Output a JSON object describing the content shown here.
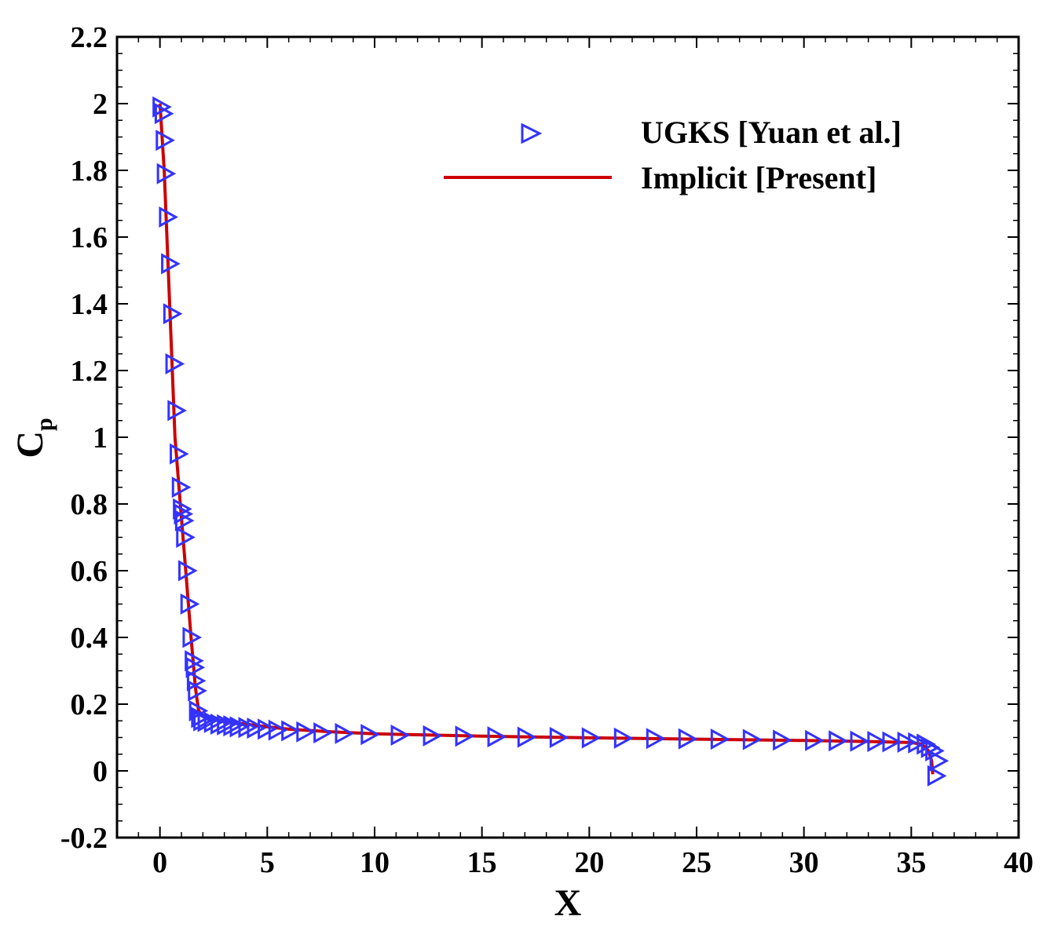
{
  "chart_data": {
    "type": "line",
    "title": "",
    "xlabel": "X",
    "ylabel_main": "C",
    "ylabel_sub": "p",
    "xlim": [
      -2,
      40
    ],
    "ylim": [
      -0.2,
      2.2
    ],
    "xticks": [
      0,
      5,
      10,
      15,
      20,
      25,
      30,
      35,
      40
    ],
    "xtick_labels": [
      "0",
      "5",
      "10",
      "15",
      "20",
      "25",
      "30",
      "35",
      "40"
    ],
    "yticks": [
      -0.2,
      0,
      0.2,
      0.4,
      0.6,
      0.8,
      1,
      1.2,
      1.4,
      1.6,
      1.8,
      2,
      2.2
    ],
    "ytick_labels": [
      "-0.2",
      "0",
      "0.2",
      "0.4",
      "0.6",
      "0.8",
      "1",
      "1.2",
      "1.4",
      "1.6",
      "1.8",
      "2",
      "2.2"
    ],
    "grid": false,
    "legend_position": "top-right",
    "series": [
      {
        "name": "UGKS [Yuan et al.]",
        "style": "markers",
        "marker": "triangle-right",
        "color": "#3333ff",
        "points": [
          [
            0.0,
            1.99
          ],
          [
            0.1,
            1.97
          ],
          [
            0.15,
            1.89
          ],
          [
            0.2,
            1.79
          ],
          [
            0.3,
            1.66
          ],
          [
            0.4,
            1.52
          ],
          [
            0.5,
            1.37
          ],
          [
            0.6,
            1.22
          ],
          [
            0.7,
            1.08
          ],
          [
            0.8,
            0.95
          ],
          [
            0.9,
            0.85
          ],
          [
            0.95,
            0.785
          ],
          [
            1.0,
            0.77
          ],
          [
            1.05,
            0.75
          ],
          [
            1.1,
            0.7
          ],
          [
            1.2,
            0.6
          ],
          [
            1.3,
            0.5
          ],
          [
            1.4,
            0.4
          ],
          [
            1.5,
            0.33
          ],
          [
            1.55,
            0.31
          ],
          [
            1.6,
            0.27
          ],
          [
            1.65,
            0.24
          ],
          [
            1.7,
            0.18
          ],
          [
            1.8,
            0.16
          ],
          [
            1.9,
            0.15
          ],
          [
            2.1,
            0.148
          ],
          [
            2.4,
            0.145
          ],
          [
            2.7,
            0.14
          ],
          [
            3.0,
            0.138
          ],
          [
            3.3,
            0.135
          ],
          [
            3.6,
            0.132
          ],
          [
            4.0,
            0.13
          ],
          [
            4.4,
            0.128
          ],
          [
            4.9,
            0.125
          ],
          [
            5.4,
            0.122
          ],
          [
            6.0,
            0.12
          ],
          [
            6.7,
            0.117
          ],
          [
            7.5,
            0.114
          ],
          [
            8.5,
            0.112
          ],
          [
            9.7,
            0.109
          ],
          [
            11.1,
            0.107
          ],
          [
            12.6,
            0.105
          ],
          [
            14.1,
            0.104
          ],
          [
            15.6,
            0.102
          ],
          [
            17.0,
            0.101
          ],
          [
            18.5,
            0.1
          ],
          [
            20.0,
            0.099
          ],
          [
            21.5,
            0.098
          ],
          [
            23.0,
            0.097
          ],
          [
            24.5,
            0.096
          ],
          [
            26.0,
            0.095
          ],
          [
            27.5,
            0.094
          ],
          [
            28.9,
            0.092
          ],
          [
            30.4,
            0.091
          ],
          [
            31.5,
            0.09
          ],
          [
            32.5,
            0.089
          ],
          [
            33.3,
            0.088
          ],
          [
            34.0,
            0.087
          ],
          [
            34.7,
            0.086
          ],
          [
            35.2,
            0.084
          ],
          [
            35.6,
            0.08
          ],
          [
            35.8,
            0.07
          ],
          [
            36.0,
            0.06
          ],
          [
            36.2,
            0.03
          ],
          [
            36.1,
            -0.015
          ]
        ]
      },
      {
        "name": "Implicit [Present]",
        "style": "line",
        "color": "#cc0000",
        "points": [
          [
            0.0,
            2.0
          ],
          [
            0.2,
            1.8
          ],
          [
            0.45,
            1.4
          ],
          [
            0.7,
            1.0
          ],
          [
            0.95,
            0.8
          ],
          [
            1.2,
            0.6
          ],
          [
            1.45,
            0.4
          ],
          [
            1.65,
            0.25
          ],
          [
            1.8,
            0.18
          ],
          [
            2.0,
            0.165
          ],
          [
            2.5,
            0.155
          ],
          [
            3.0,
            0.148
          ],
          [
            4.0,
            0.14
          ],
          [
            5.0,
            0.132
          ],
          [
            6.0,
            0.125
          ],
          [
            8.0,
            0.117
          ],
          [
            10.0,
            0.111
          ],
          [
            15.0,
            0.104
          ],
          [
            20.0,
            0.099
          ],
          [
            25.0,
            0.095
          ],
          [
            30.0,
            0.091
          ],
          [
            33.0,
            0.088
          ],
          [
            35.0,
            0.085
          ],
          [
            35.5,
            0.08
          ],
          [
            35.8,
            0.06
          ],
          [
            35.95,
            0.03
          ],
          [
            36.0,
            -0.01
          ]
        ]
      }
    ]
  }
}
